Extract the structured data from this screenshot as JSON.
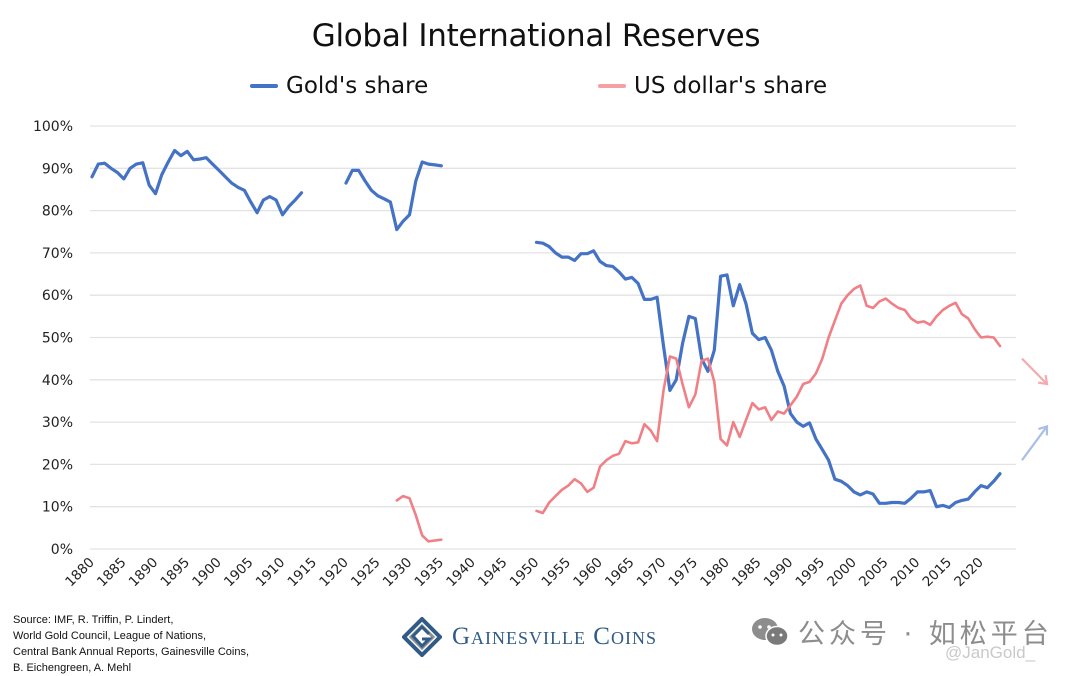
{
  "chart_data": {
    "type": "line",
    "title": "Global International Reserves",
    "xlabel": "",
    "ylabel": "",
    "ylim": [
      0,
      100
    ],
    "xlim": [
      1880,
      2023
    ],
    "grid": true,
    "legend_placement": "top",
    "y_ticks": [
      "0%",
      "10%",
      "20%",
      "30%",
      "40%",
      "50%",
      "60%",
      "70%",
      "80%",
      "90%",
      "100%"
    ],
    "y_tick_values": [
      0,
      10,
      20,
      30,
      40,
      50,
      60,
      70,
      80,
      90,
      100
    ],
    "x_ticks": [
      "1880",
      "1885",
      "1890",
      "1895",
      "1900",
      "1905",
      "1910",
      "1915",
      "1920",
      "1925",
      "1930",
      "1935",
      "1940",
      "1945",
      "1950",
      "1955",
      "1960",
      "1965",
      "1970",
      "1975",
      "1980",
      "1985",
      "1990",
      "1995",
      "2000",
      "2005",
      "2010",
      "2015",
      "2020"
    ],
    "x_tick_values": [
      1880,
      1885,
      1890,
      1895,
      1900,
      1905,
      1910,
      1915,
      1920,
      1925,
      1930,
      1935,
      1940,
      1945,
      1950,
      1955,
      1960,
      1965,
      1970,
      1975,
      1980,
      1985,
      1990,
      1995,
      2000,
      2005,
      2010,
      2015,
      2020
    ],
    "series": [
      {
        "name": "Gold's share",
        "color": "#4472c4",
        "segments": [
          {
            "x": [
              1880,
              1881,
              1882,
              1883,
              1884,
              1885,
              1886,
              1887,
              1888,
              1889,
              1890,
              1891,
              1892,
              1893,
              1894,
              1895,
              1896,
              1897,
              1898,
              1899,
              1900,
              1901,
              1902,
              1903,
              1904,
              1905,
              1906,
              1907,
              1908,
              1909,
              1910,
              1911,
              1912,
              1913
            ],
            "values": [
              88,
              91,
              91.2,
              90,
              89,
              87.5,
              90,
              91,
              91.3,
              86,
              84,
              88.5,
              91.5,
              94.2,
              93,
              94,
              92,
              92.2,
              92.5,
              91,
              89.5,
              88,
              86.5,
              85.5,
              84.8,
              82,
              79.5,
              82.5,
              83.3,
              82.5,
              79,
              81,
              82.5,
              84.2
            ]
          },
          {
            "x": [
              1920,
              1921,
              1922,
              1923,
              1924,
              1925,
              1926,
              1927,
              1928,
              1929,
              1930,
              1931,
              1932,
              1933,
              1934,
              1935
            ],
            "values": [
              86.5,
              89.5,
              89.5,
              87,
              84.8,
              83.5,
              82.8,
              82,
              75.5,
              77.5,
              79,
              87,
              91.5,
              91,
              90.8,
              90.6
            ]
          },
          {
            "x": [
              1950,
              1951,
              1952,
              1953,
              1954,
              1955,
              1956,
              1957,
              1958,
              1959,
              1960,
              1961,
              1962,
              1963,
              1964,
              1965,
              1966,
              1967,
              1968,
              1969,
              1970,
              1971,
              1972,
              1973,
              1974,
              1975,
              1976,
              1977,
              1978,
              1979,
              1980,
              1981,
              1982,
              1983,
              1984,
              1985,
              1986,
              1987,
              1988,
              1989,
              1990,
              1991,
              1992,
              1993,
              1994,
              1995,
              1996,
              1997,
              1998,
              1999,
              2000,
              2001,
              2002,
              2003,
              2004,
              2005,
              2006,
              2007,
              2008,
              2009,
              2010,
              2011,
              2012,
              2013,
              2014,
              2015,
              2016,
              2017,
              2018,
              2019,
              2020,
              2021,
              2022,
              2023
            ],
            "values": [
              72.5,
              72.3,
              71.5,
              70,
              69,
              69,
              68.2,
              69.8,
              69.8,
              70.5,
              68,
              67,
              66.8,
              65.5,
              63.8,
              64.2,
              62.8,
              59,
              59,
              59.5,
              48,
              37.5,
              40,
              48.5,
              55,
              54.5,
              45,
              42,
              47,
              64.5,
              64.8,
              57.5,
              62.5,
              58,
              51,
              49.5,
              50,
              47,
              42,
              38.5,
              32,
              30,
              29,
              29.8,
              26,
              23.5,
              21,
              16.5,
              16,
              15,
              13.5,
              12.8,
              13.5,
              13,
              10.8,
              10.8,
              11,
              11,
              10.8,
              12,
              13.5,
              13.5,
              13.8,
              10,
              10.3,
              9.8,
              11,
              11.5,
              11.8,
              13.5,
              15,
              14.5,
              16,
              17.8
            ]
          }
        ],
        "projection": {
          "direction": "up",
          "from": 21,
          "to": 29
        }
      },
      {
        "name": "US dollar's share",
        "color": "#f08080",
        "segments": [
          {
            "x": [
              1928,
              1929,
              1930,
              1931,
              1932,
              1933,
              1934,
              1935
            ],
            "values": [
              11.5,
              12.5,
              12,
              8,
              3.2,
              1.8,
              2,
              2.2
            ]
          },
          {
            "x": [
              1950,
              1951,
              1952,
              1953,
              1954,
              1955,
              1956,
              1957,
              1958,
              1959,
              1960,
              1961,
              1962,
              1963,
              1964,
              1965,
              1966,
              1967,
              1968,
              1969,
              1970,
              1971,
              1972,
              1973,
              1974,
              1975,
              1976,
              1977,
              1978,
              1979,
              1980,
              1981,
              1982,
              1983,
              1984,
              1985,
              1986,
              1987,
              1988,
              1989,
              1990,
              1991,
              1992,
              1993,
              1994,
              1995,
              1996,
              1997,
              1998,
              1999,
              2000,
              2001,
              2002,
              2003,
              2004,
              2005,
              2006,
              2007,
              2008,
              2009,
              2010,
              2011,
              2012,
              2013,
              2014,
              2015,
              2016,
              2017,
              2018,
              2019,
              2020,
              2021,
              2022,
              2023
            ],
            "values": [
              9,
              8.5,
              11,
              12.5,
              14,
              15,
              16.5,
              15.5,
              13.5,
              14.5,
              19.5,
              21,
              22,
              22.5,
              25.5,
              25,
              25.2,
              29.5,
              28,
              25.5,
              37.5,
              45.5,
              45,
              39,
              33.5,
              36.5,
              44.5,
              45,
              39.5,
              26,
              24.5,
              30,
              26.5,
              30.5,
              34.5,
              33,
              33.5,
              30.5,
              32.5,
              32,
              34,
              36,
              39,
              39.5,
              41.5,
              45,
              50,
              54,
              58,
              60,
              61.5,
              62.3,
              57.5,
              57,
              58.5,
              59.2,
              58,
              57,
              56.5,
              54.5,
              53.5,
              53.8,
              53,
              55,
              56.5,
              57.5,
              58.2,
              55.5,
              54.5,
              52,
              50,
              50.2,
              50,
              48
            ]
          }
        ],
        "projection": {
          "direction": "down",
          "from": 45,
          "to": 39
        }
      }
    ]
  },
  "footer": {
    "source_lines": [
      "Source: IMF, R. Triffin, P. Lindert,",
      "World Gold Council, League of Nations,",
      "Central Bank Annual Reports, Gainesville Coins,",
      "B. Eichengreen, A. Mehl"
    ],
    "brand_name": "Gainesville Coins",
    "brand_logo_icon": "gainesville-coins-logo-icon",
    "watermark_text": "公众号 · 如松平台",
    "watermark_icon": "wechat-icon",
    "watermark_handle": "@JanGold_"
  }
}
